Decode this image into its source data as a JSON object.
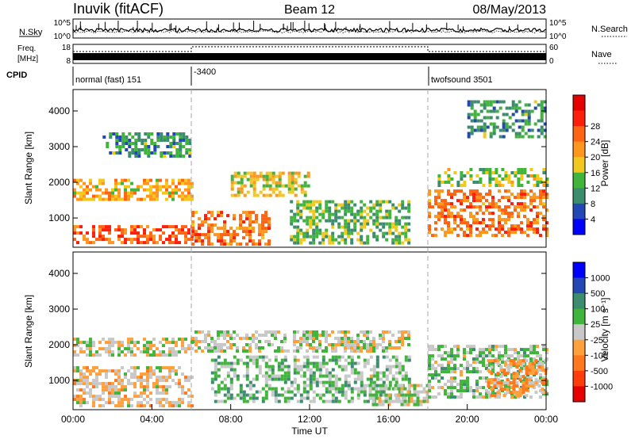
{
  "header": {
    "station": "Inuvik (fitACF)",
    "beam": "Beam 12",
    "date": "08/May/2013"
  },
  "noise_panel": {
    "left_label": "N.Sky",
    "right_label": "N.Search",
    "left_ticks": [
      "10^5",
      "10^0"
    ],
    "right_ticks": [
      "10^5",
      "10^0"
    ]
  },
  "freq_panel": {
    "left_label_1": "Freq.",
    "left_label_2": "[MHz]",
    "right_label": "Nave",
    "left_ticks": [
      "18",
      "8"
    ],
    "right_ticks": [
      "60",
      "0"
    ]
  },
  "cpid_panel": {
    "label": "CPID",
    "segments": [
      {
        "text": "normal (fast) 151",
        "start_hour": 0
      },
      {
        "text": "-3400",
        "start_hour": 6
      },
      {
        "text": "twofsound 3501",
        "start_hour": 18
      }
    ]
  },
  "axes": {
    "x_label": "Time UT",
    "x_ticks": [
      "00:00",
      "04:00",
      "08:00",
      "12:00",
      "16:00",
      "20:00",
      "00:00"
    ],
    "y_label": "Slant Range [km]",
    "y_ticks": [
      "1000",
      "2000",
      "3000",
      "4000"
    ]
  },
  "colors": {
    "power": [
      "#0000ff",
      "#2347b4",
      "#3c8c6e",
      "#41b43c",
      "#f0c81e",
      "#ff961e",
      "#ff6414",
      "#ff1e0a",
      "#e60000"
    ],
    "velocity": [
      "#0000ff",
      "#2347b4",
      "#3c8c6e",
      "#41b43c",
      "#c8c8c8",
      "#ffa03c",
      "#ff781e",
      "#ff3c0a",
      "#e60000"
    ]
  },
  "chart_data": [
    {
      "type": "heatmap",
      "title": "",
      "xlabel": "Time UT",
      "ylabel": "Slant Range [km]",
      "xlim": [
        0,
        24
      ],
      "ylim": [
        180,
        4600
      ],
      "colorbar": {
        "label": "Power [dB]",
        "ticks": [
          "4",
          "8",
          "12",
          "16",
          "20",
          "24",
          "28"
        ],
        "range": [
          0,
          32
        ]
      },
      "regions": [
        {
          "t0": 0.0,
          "t1": 6.0,
          "r0": 1500,
          "r1": 2100,
          "value": 18
        },
        {
          "t0": 0.0,
          "t1": 6.0,
          "r0": 300,
          "r1": 800,
          "value": 24
        },
        {
          "t0": 1.5,
          "t1": 6.0,
          "r0": 2700,
          "r1": 3400,
          "value": 10
        },
        {
          "t0": 6.0,
          "t1": 10.0,
          "r0": 300,
          "r1": 1200,
          "value": 22
        },
        {
          "t0": 8.0,
          "t1": 12.0,
          "r0": 1600,
          "r1": 2300,
          "value": 16
        },
        {
          "t0": 11.0,
          "t1": 17.0,
          "r0": 300,
          "r1": 1500,
          "value": 12
        },
        {
          "t0": 18.0,
          "t1": 24.0,
          "r0": 500,
          "r1": 1800,
          "value": 22
        },
        {
          "t0": 18.5,
          "t1": 24.0,
          "r0": 1900,
          "r1": 2400,
          "value": 14
        },
        {
          "t0": 20.0,
          "t1": 24.0,
          "r0": 3300,
          "r1": 4300,
          "value": 10
        }
      ]
    },
    {
      "type": "heatmap",
      "title": "",
      "xlabel": "Time UT",
      "ylabel": "Slant Range [km]",
      "xlim": [
        0,
        24
      ],
      "ylim": [
        180,
        4600
      ],
      "colorbar": {
        "label": "Velocity [m s⁻¹]",
        "ticks": [
          "1000",
          "500",
          "100",
          "25",
          "-25",
          "-100",
          "-500",
          "-1000"
        ],
        "range": [
          -1200,
          1200
        ]
      },
      "regions": [
        {
          "t0": 0.0,
          "t1": 6.0,
          "r0": 1700,
          "r1": 2200,
          "value": 0
        },
        {
          "t0": 0.0,
          "t1": 6.0,
          "r0": 300,
          "r1": 1400,
          "value": -150
        },
        {
          "t0": 6.0,
          "t1": 17.0,
          "r0": 1800,
          "r1": 2400,
          "value": 0
        },
        {
          "t0": 7.0,
          "t1": 17.0,
          "r0": 400,
          "r1": 1700,
          "value": 200
        },
        {
          "t0": 15.0,
          "t1": 18.0,
          "r0": 300,
          "r1": 900,
          "value": 80
        },
        {
          "t0": 18.0,
          "t1": 24.0,
          "r0": 500,
          "r1": 2000,
          "value": 150
        },
        {
          "t0": 21.0,
          "t1": 24.0,
          "r0": 600,
          "r1": 1600,
          "value": -300
        }
      ]
    }
  ]
}
